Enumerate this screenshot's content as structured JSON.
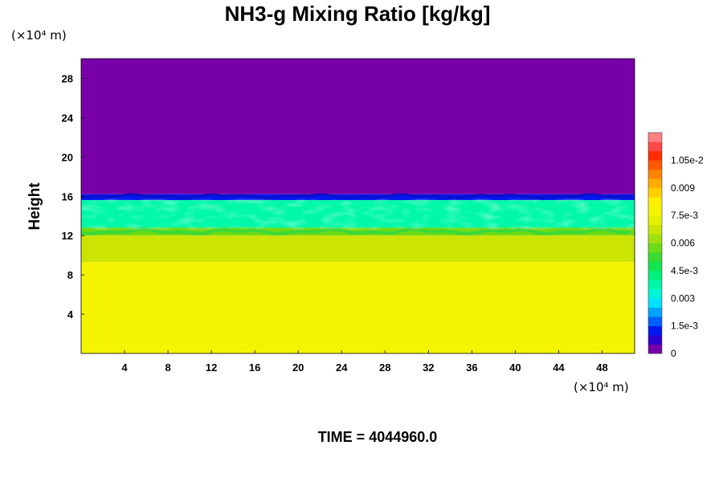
{
  "chart_data": {
    "type": "heatmap",
    "title": "NH3-g Mixing Ratio [kg/kg]",
    "ylabel": "Height",
    "xunit": "(×10⁴ m)",
    "yunit": "(×10⁴ m)",
    "xlim": [
      0,
      51
    ],
    "ylim": [
      0,
      30
    ],
    "x_ticks": [
      4,
      8,
      12,
      16,
      20,
      24,
      28,
      32,
      36,
      40,
      44,
      48
    ],
    "y_ticks": [
      4,
      8,
      12,
      16,
      20,
      24,
      28
    ],
    "colorbar": {
      "min": 0,
      "max": 0.012,
      "tick_values": [
        0,
        0.0015,
        0.003,
        0.0045,
        0.006,
        0.0075,
        0.009,
        0.0105
      ],
      "tick_labels": [
        "0",
        "1.5e-3",
        "0.003",
        "4.5e-3",
        "0.006",
        "7.5e-3",
        "0.009",
        "1.05e-2"
      ],
      "colors": [
        "#7800a8",
        "#2c00d0",
        "#0018f0",
        "#0060ff",
        "#00a4ff",
        "#00e0ff",
        "#00f4d8",
        "#00f8a8",
        "#00f07c",
        "#10e450",
        "#38dc30",
        "#6cdc18",
        "#a0e010",
        "#cce404",
        "#e4f000",
        "#f4f400",
        "#fff000",
        "#ffd000",
        "#ffac00",
        "#ff8400",
        "#ff5800",
        "#ff2c00",
        "#ff4848",
        "#ff8080"
      ]
    },
    "layers": [
      {
        "range_y": [
          16.2,
          30
        ],
        "value": 0
      },
      {
        "range_y": [
          15.6,
          16.2
        ],
        "value": 0.0012
      },
      {
        "range_y": [
          12.8,
          15.6
        ],
        "value": 0.0036
      },
      {
        "range_y": [
          12.0,
          12.8
        ],
        "value": 0.0055
      },
      {
        "range_y": [
          9.3,
          12.0
        ],
        "value": 0.0065
      },
      {
        "range_y": [
          0,
          9.3
        ],
        "value": 0.0077
      }
    ],
    "time_label": "TIME = 4044960.0"
  }
}
